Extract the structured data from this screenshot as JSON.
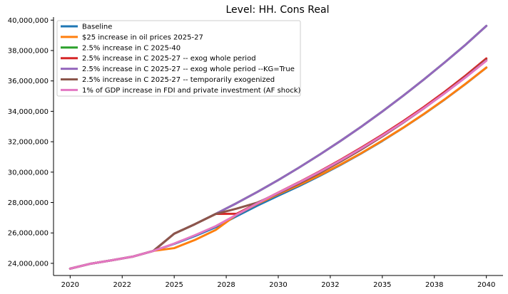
{
  "chart_data": {
    "type": "line",
    "title": "Level: HH. Cons Real",
    "xlabel": "",
    "ylabel": "",
    "xlim": [
      2019.2,
      2040.8
    ],
    "ylim": [
      23200000,
      40200000
    ],
    "x_ticks": [
      {
        "value": 2020,
        "label": "2020"
      },
      {
        "value": 2022.5,
        "label": "2022"
      },
      {
        "value": 2025,
        "label": "2025"
      },
      {
        "value": 2027.5,
        "label": "2028"
      },
      {
        "value": 2030,
        "label": "2030"
      },
      {
        "value": 2032.5,
        "label": "2032"
      },
      {
        "value": 2035,
        "label": "2035"
      },
      {
        "value": 2037.5,
        "label": "2038"
      },
      {
        "value": 2040,
        "label": "2040"
      }
    ],
    "y_ticks": [
      {
        "value": 24000000,
        "label": "24,000,000"
      },
      {
        "value": 26000000,
        "label": "26,000,000"
      },
      {
        "value": 28000000,
        "label": "28,000,000"
      },
      {
        "value": 30000000,
        "label": "30,000,000"
      },
      {
        "value": 32000000,
        "label": "32,000,000"
      },
      {
        "value": 34000000,
        "label": "34,000,000"
      },
      {
        "value": 36000000,
        "label": "36,000,000"
      },
      {
        "value": 38000000,
        "label": "38,000,000"
      },
      {
        "value": 40000000,
        "label": "40,000,000"
      }
    ],
    "grid": false,
    "legend_position": "top-left",
    "x": [
      2020,
      2021,
      2022,
      2023,
      2024,
      2025,
      2026,
      2027,
      2028,
      2029,
      2030,
      2031,
      2032,
      2033,
      2034,
      2035,
      2036,
      2037,
      2038,
      2039,
      2040
    ],
    "series": [
      {
        "name": "Baseline",
        "color": "#1f77b4",
        "values": [
          23650000,
          23980000,
          24200000,
          24440000,
          24820000,
          25280000,
          25800000,
          26380000,
          27100000,
          27800000,
          28450000,
          29080000,
          29760000,
          30480000,
          31240000,
          32050000,
          32910000,
          33820000,
          34780000,
          35800000,
          36880000
        ]
      },
      {
        "name": "$25 increase in oil prices 2025-27",
        "color": "#ff7f0e",
        "values": [
          23650000,
          23980000,
          24200000,
          24440000,
          24820000,
          25000000,
          25540000,
          26200000,
          27200000,
          27920000,
          28550000,
          29150000,
          29800000,
          30510000,
          31260000,
          32070000,
          32920000,
          33830000,
          34790000,
          35810000,
          36880000
        ]
      },
      {
        "name": "2.5% increase in C 2025-40",
        "color": "#2ca02c",
        "values": [
          23650000,
          23980000,
          24200000,
          24440000,
          24820000,
          25950000,
          26580000,
          27260000,
          27960000,
          28700000,
          29480000,
          30300000,
          31160000,
          32060000,
          33000000,
          33990000,
          35020000,
          36100000,
          37220000,
          38380000,
          39620000
        ]
      },
      {
        "name": "2.5% increase in C 2025-27 -- exog whole period",
        "color": "#d62728",
        "values": [
          23650000,
          23980000,
          24200000,
          24440000,
          24820000,
          25950000,
          26580000,
          27250000,
          27260000,
          27960000,
          28660000,
          29340000,
          30060000,
          30820000,
          31620000,
          32460000,
          33350000,
          34290000,
          35290000,
          36350000,
          37480000
        ]
      },
      {
        "name": "2.5% increase in C 2025-27 -- exog whole period --KG=True",
        "color": "#9467bd",
        "values": [
          23650000,
          23980000,
          24200000,
          24440000,
          24820000,
          25950000,
          26580000,
          27260000,
          27960000,
          28700000,
          29480000,
          30300000,
          31160000,
          32060000,
          33000000,
          33990000,
          35020000,
          36100000,
          37220000,
          38380000,
          39620000
        ]
      },
      {
        "name": "2.5% increase in C 2025-27 -- temporarily exogenized",
        "color": "#8c564b",
        "values": [
          23650000,
          23980000,
          24200000,
          24440000,
          24820000,
          25950000,
          26580000,
          27250000,
          27600000,
          28000000,
          28600000,
          29250000,
          29950000,
          30700000,
          31500000,
          32350000,
          33250000,
          34200000,
          35200000,
          36260000,
          37380000
        ]
      },
      {
        "name": "1% of GDP increase in FDI and private investment (AF shock)",
        "color": "#e377c2",
        "values": [
          23650000,
          23980000,
          24200000,
          24440000,
          24820000,
          25300000,
          25850000,
          26450000,
          27200000,
          27950000,
          28650000,
          29320000,
          30030000,
          30780000,
          31570000,
          32400000,
          33280000,
          34210000,
          35190000,
          36230000,
          37330000
        ]
      }
    ]
  }
}
